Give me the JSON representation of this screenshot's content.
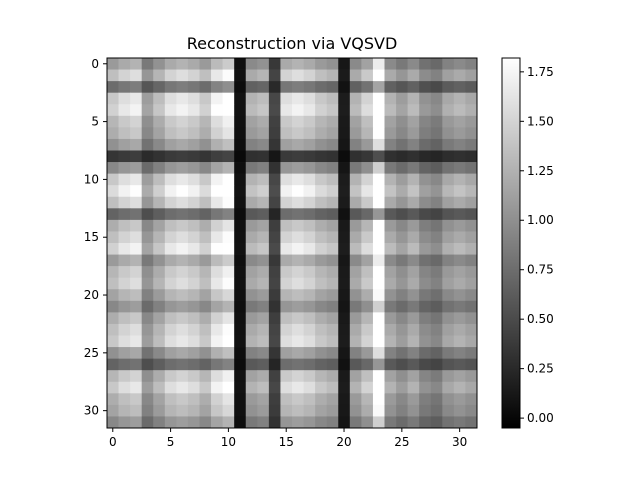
{
  "chart_data": {
    "type": "heatmap",
    "title": "Reconstruction via VQSVD",
    "colormap": "gray",
    "rows": 32,
    "cols": 32,
    "xlim": [
      -0.5,
      31.5
    ],
    "ylim": [
      31.5,
      -0.5
    ],
    "x_ticks": [
      0,
      5,
      10,
      15,
      20,
      25,
      30
    ],
    "y_ticks": [
      0,
      5,
      10,
      15,
      20,
      25,
      30
    ],
    "x_tick_labels": [
      "0",
      "5",
      "10",
      "15",
      "20",
      "25",
      "30"
    ],
    "y_tick_labels": [
      "0",
      "5",
      "10",
      "15",
      "20",
      "25",
      "30"
    ],
    "colorbar": {
      "range": [
        -0.05,
        1.82
      ],
      "ticks": [
        0.0,
        0.25,
        0.5,
        0.75,
        1.0,
        1.25,
        1.5,
        1.75
      ],
      "tick_labels": [
        "0.00",
        "0.25",
        "0.50",
        "0.75",
        "1.00",
        "1.25",
        "1.50",
        "1.75"
      ]
    },
    "row_factors": [
      0.8,
      1.0,
      0.55,
      1.05,
      1.1,
      0.95,
      0.9,
      0.75,
      0.25,
      0.7,
      1.05,
      1.15,
      1.0,
      0.5,
      0.9,
      1.0,
      1.1,
      0.8,
      0.95,
      1.0,
      0.85,
      0.7,
      0.9,
      1.0,
      1.05,
      0.75,
      0.5,
      0.95,
      1.05,
      0.9,
      0.85,
      0.7
    ],
    "col_factors": [
      0.9,
      1.0,
      1.05,
      0.7,
      0.85,
      1.0,
      1.05,
      1.0,
      0.9,
      1.1,
      1.2,
      0.05,
      0.8,
      0.85,
      0.3,
      1.0,
      1.05,
      1.0,
      0.9,
      0.85,
      0.1,
      0.8,
      0.95,
      1.4,
      0.8,
      0.7,
      0.8,
      0.65,
      0.6,
      0.75,
      0.8,
      0.75
    ],
    "value_formula": "value[r][c] = row_factors[r] * col_factors[c] * 1.5"
  }
}
